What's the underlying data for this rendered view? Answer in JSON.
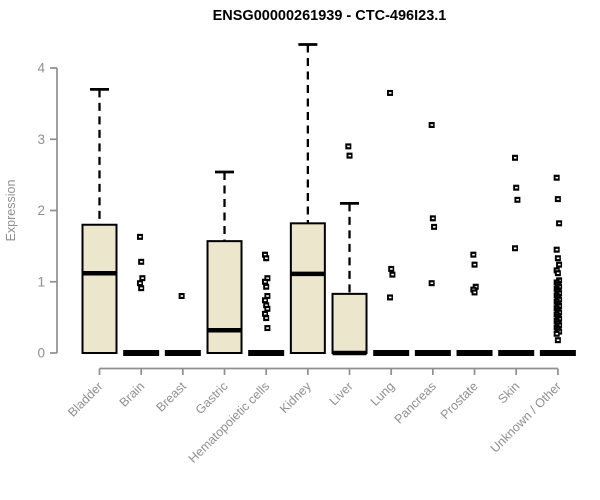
{
  "chart_data": {
    "type": "boxplot",
    "title": "ENSG00000261939 - CTC-496I23.1",
    "ylabel": "Expression",
    "xlabel": "",
    "ylim": [
      0,
      4.35
    ],
    "yticks": [
      0,
      1,
      2,
      3,
      4
    ],
    "grid": false,
    "legend": "none",
    "categories": [
      "Bladder",
      "Brain",
      "Breast",
      "Gastric",
      "Hematopoietic cells",
      "Kidney",
      "Liver",
      "Lung",
      "Pancreas",
      "Prostate",
      "Skin",
      "Unknown / Other"
    ],
    "series": [
      {
        "category": "Bladder",
        "whisker_low": 0,
        "q1": 0,
        "median": 1.12,
        "q3": 1.8,
        "whisker_high": 3.7,
        "outliers": []
      },
      {
        "category": "Brain",
        "whisker_low": 0,
        "q1": 0,
        "median": 0,
        "q3": 0,
        "whisker_high": 0,
        "outliers": [
          1.63,
          1.28,
          1.05,
          0.98,
          0.91
        ]
      },
      {
        "category": "Breast",
        "whisker_low": 0,
        "q1": 0,
        "median": 0,
        "q3": 0,
        "whisker_high": 0,
        "outliers": [
          0.8
        ]
      },
      {
        "category": "Gastric",
        "whisker_low": 0,
        "q1": 0,
        "median": 0.32,
        "q3": 1.57,
        "whisker_high": 2.54,
        "outliers": []
      },
      {
        "category": "Hematopoietic cells",
        "whisker_low": 0,
        "q1": 0,
        "median": 0,
        "q3": 0,
        "whisker_high": 0,
        "outliers": [
          1.38,
          1.33,
          1.05,
          1.0,
          0.93,
          0.8,
          0.74,
          0.67,
          0.62,
          0.55,
          0.49,
          0.35
        ]
      },
      {
        "category": "Kidney",
        "whisker_low": 0,
        "q1": 0,
        "median": 1.11,
        "q3": 1.82,
        "whisker_high": 4.33,
        "outliers": []
      },
      {
        "category": "Liver",
        "whisker_low": 0,
        "q1": 0,
        "median": 0,
        "q3": 0.83,
        "whisker_high": 2.1,
        "outliers": [
          2.9,
          2.77
        ]
      },
      {
        "category": "Lung",
        "whisker_low": 0,
        "q1": 0,
        "median": 0,
        "q3": 0,
        "whisker_high": 0,
        "outliers": [
          3.65,
          1.18,
          1.1,
          0.78
        ]
      },
      {
        "category": "Pancreas",
        "whisker_low": 0,
        "q1": 0,
        "median": 0,
        "q3": 0,
        "whisker_high": 0,
        "outliers": [
          3.2,
          1.89,
          1.77,
          0.98
        ]
      },
      {
        "category": "Prostate",
        "whisker_low": 0,
        "q1": 0,
        "median": 0,
        "q3": 0,
        "whisker_high": 0,
        "outliers": [
          1.38,
          1.24,
          0.93,
          0.89,
          0.85
        ]
      },
      {
        "category": "Skin",
        "whisker_low": 0,
        "q1": 0,
        "median": 0,
        "q3": 0,
        "whisker_high": 0,
        "outliers": [
          2.74,
          2.32,
          2.15,
          1.47
        ]
      },
      {
        "category": "Unknown / Other",
        "whisker_low": 0,
        "q1": 0,
        "median": 0,
        "q3": 0,
        "whisker_high": 0,
        "outliers": [
          2.46,
          2.16,
          1.82,
          1.45,
          1.33,
          1.24,
          1.16,
          1.12,
          1.02,
          0.99,
          0.96,
          0.93,
          0.9,
          0.87,
          0.84,
          0.81,
          0.78,
          0.75,
          0.72,
          0.69,
          0.66,
          0.63,
          0.6,
          0.57,
          0.54,
          0.51,
          0.48,
          0.45,
          0.42,
          0.39,
          0.36,
          0.33,
          0.3,
          0.27,
          0.18
        ]
      }
    ],
    "colors": {
      "box_fill": "#ECE6CC",
      "box_border": "#000000",
      "median": "#000000",
      "whisker": "#000000",
      "outlier": "#000000",
      "axis": "#8F8F8F",
      "title": "#000000",
      "background": "#FFFFFF"
    }
  }
}
